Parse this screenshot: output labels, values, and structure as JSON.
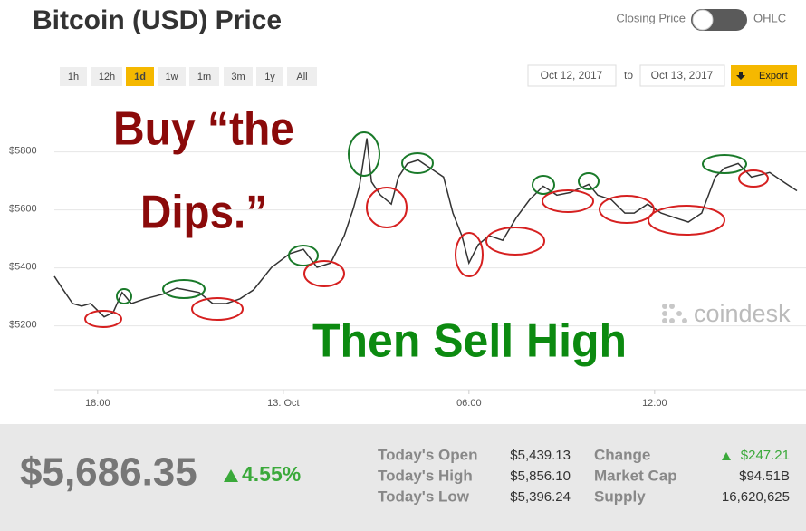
{
  "chart_data": {
    "type": "line",
    "title": "Bitcoin (USD) Price",
    "color": "#333333",
    "grid": true,
    "x": [
      16.6,
      16.89,
      17.19,
      17.48,
      17.77,
      18.21,
      18.5,
      18.79,
      19.09,
      19.53,
      20.11,
      20.55,
      20.84,
      21.28,
      21.72,
      22.16,
      22.6,
      23.04,
      23.62,
      24.21,
      24.65,
      25.09,
      25.53,
      25.97,
      26.26,
      26.46,
      26.7,
      26.85,
      27.14,
      27.49,
      27.72,
      28.01,
      28.36,
      28.75,
      29.18,
      29.48,
      29.77,
      30.0,
      30.3,
      30.65,
      31.09,
      31.53,
      31.96,
      32.4,
      32.84,
      33.28,
      33.87,
      34.16,
      34.6,
      35.04,
      35.34,
      35.77,
      36.21,
      36.65,
      37.09,
      37.52,
      37.96,
      38.26,
      38.7,
      39.13,
      39.72,
      40.16,
      40.6
    ],
    "values": [
      5371,
      5324,
      5277,
      5268,
      5277,
      5231,
      5246,
      5315,
      5277,
      5293,
      5309,
      5330,
      5324,
      5315,
      5277,
      5277,
      5293,
      5324,
      5402,
      5449,
      5464,
      5402,
      5417,
      5511,
      5604,
      5682,
      5847,
      5697,
      5651,
      5620,
      5713,
      5760,
      5772,
      5744,
      5713,
      5589,
      5511,
      5417,
      5480,
      5511,
      5495,
      5573,
      5635,
      5682,
      5651,
      5660,
      5688,
      5651,
      5635,
      5589,
      5589,
      5620,
      5589,
      5573,
      5558,
      5589,
      5713,
      5744,
      5760,
      5713,
      5729,
      5697,
      5666
    ],
    "xlim": [
      16.6,
      40.6
    ],
    "xticks": [
      {
        "value": 18,
        "label": "18:00"
      },
      {
        "value": 24,
        "label": "13. Oct"
      },
      {
        "value": 30,
        "label": "06:00"
      },
      {
        "value": 36,
        "label": "12:00"
      }
    ],
    "ylim": [
      4980,
      5980
    ],
    "yticks": [
      {
        "value": 5200,
        "label": "$5200"
      },
      {
        "value": 5400,
        "label": "$5400"
      },
      {
        "value": 5600,
        "label": "$5600"
      },
      {
        "value": 5800,
        "label": "$5800"
      }
    ],
    "annotations": [
      "Buy “the",
      "Dips.”",
      "Then Sell High"
    ]
  },
  "toggle": {
    "left": "Closing Price",
    "right": "OHLC"
  },
  "ranges": [
    "1h",
    "12h",
    "1d",
    "1w",
    "1m",
    "3m",
    "1y",
    "All"
  ],
  "dates": {
    "from": "Oct 12, 2017",
    "to_label": "to",
    "to": "Oct 13, 2017",
    "export": "Export"
  },
  "logo": "coindesk",
  "stats": {
    "price": "$5,686.35",
    "change_pct": "4.55%",
    "rows": [
      [
        "Today's Open",
        "$5,439.13",
        "Change",
        "$247.21"
      ],
      [
        "Today's High",
        "$5,856.10",
        "Market Cap",
        "$94.51B"
      ],
      [
        "Today's Low",
        "$5,396.24",
        "Supply",
        "16,620,625"
      ]
    ]
  }
}
